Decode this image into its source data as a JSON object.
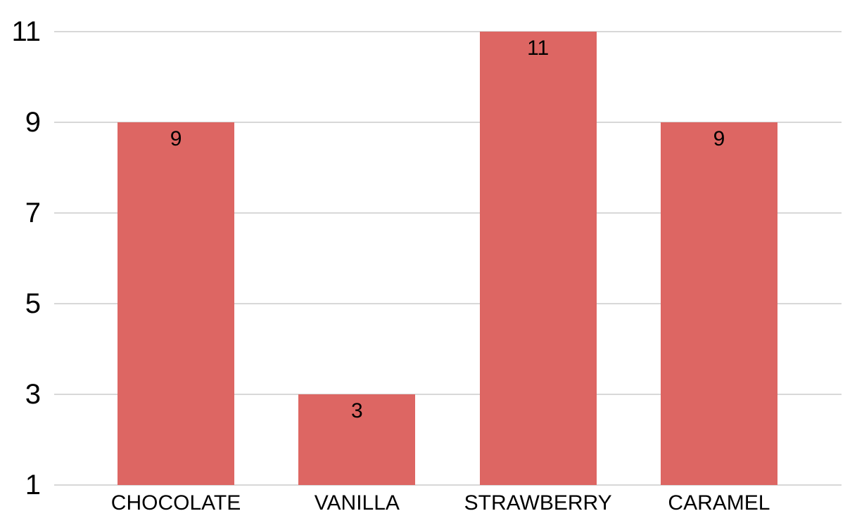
{
  "chart_data": {
    "type": "bar",
    "categories": [
      "CHOCOLATE",
      "VANILLA",
      "STRAWBERRY",
      "CARAMEL"
    ],
    "values": [
      9,
      3,
      11,
      9
    ],
    "data_labels": [
      "9",
      "3",
      "11",
      "9"
    ],
    "y_axis": {
      "min": 1,
      "max": 11,
      "tick_values": [
        1,
        3,
        5,
        7,
        9,
        11
      ],
      "tick_labels": [
        "1",
        "3",
        "5",
        "7",
        "9",
        "11"
      ]
    },
    "grid": true,
    "legend": "none",
    "colors": {
      "bar": "#DD6663",
      "gridline": "#D8D8D8",
      "text": "#000000",
      "background": "#FFFFFF"
    }
  }
}
